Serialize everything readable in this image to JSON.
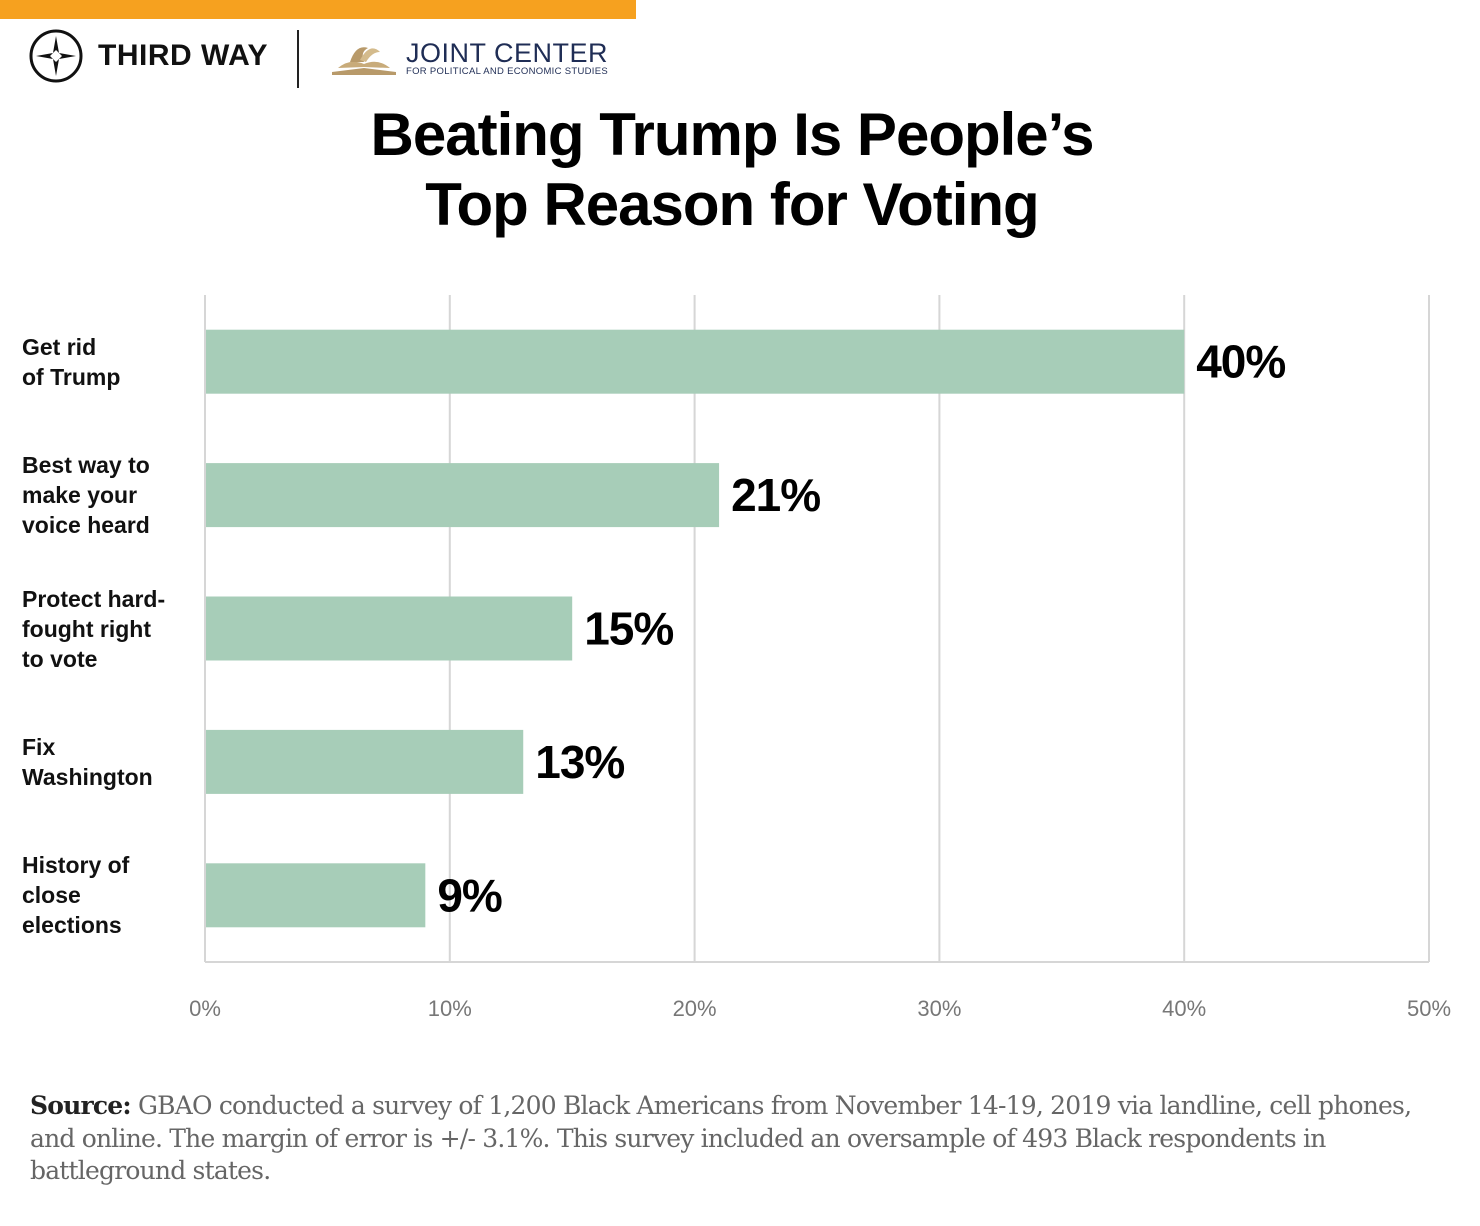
{
  "branding": {
    "bar_color": "#f6a11f",
    "third_way": "THIRD WAY",
    "joint_center": "JOINT CENTER",
    "joint_center_sub": "FOR POLITICAL AND ECONOMIC STUDIES"
  },
  "chart_data": {
    "type": "bar",
    "orientation": "horizontal",
    "title": "Beating Trump Is People’s Top Reason for Voting",
    "title_lines": [
      "Beating Trump Is People’s",
      "Top Reason for Voting"
    ],
    "categories": [
      "Get rid\nof Trump",
      "Best way to\nmake your\nvoice heard",
      "Protect hard-\nfought right\nto vote",
      "Fix\nWashington",
      "History of\nclose\nelections"
    ],
    "values": [
      40,
      21,
      15,
      13,
      9
    ],
    "data_labels": [
      "40%",
      "21%",
      "15%",
      "13%",
      "9%"
    ],
    "xlim": [
      0,
      50
    ],
    "xticks": [
      0,
      10,
      20,
      30,
      40,
      50
    ],
    "xtick_labels": [
      "0%",
      "10%",
      "20%",
      "30%",
      "40%",
      "50%"
    ],
    "xlabel": "",
    "ylabel": "",
    "grid": "vertical",
    "bar_color": "#a7cdb8",
    "grid_color": "#d6d6d6"
  },
  "source": {
    "label": "Source:",
    "text": " GBAO conducted a survey of 1,200 Black Americans from November 14-19, 2019 via landline, cell phones, and online. The margin of error is +/- 3.1%. This survey included an oversample of 493 Black respondents in battleground states."
  }
}
